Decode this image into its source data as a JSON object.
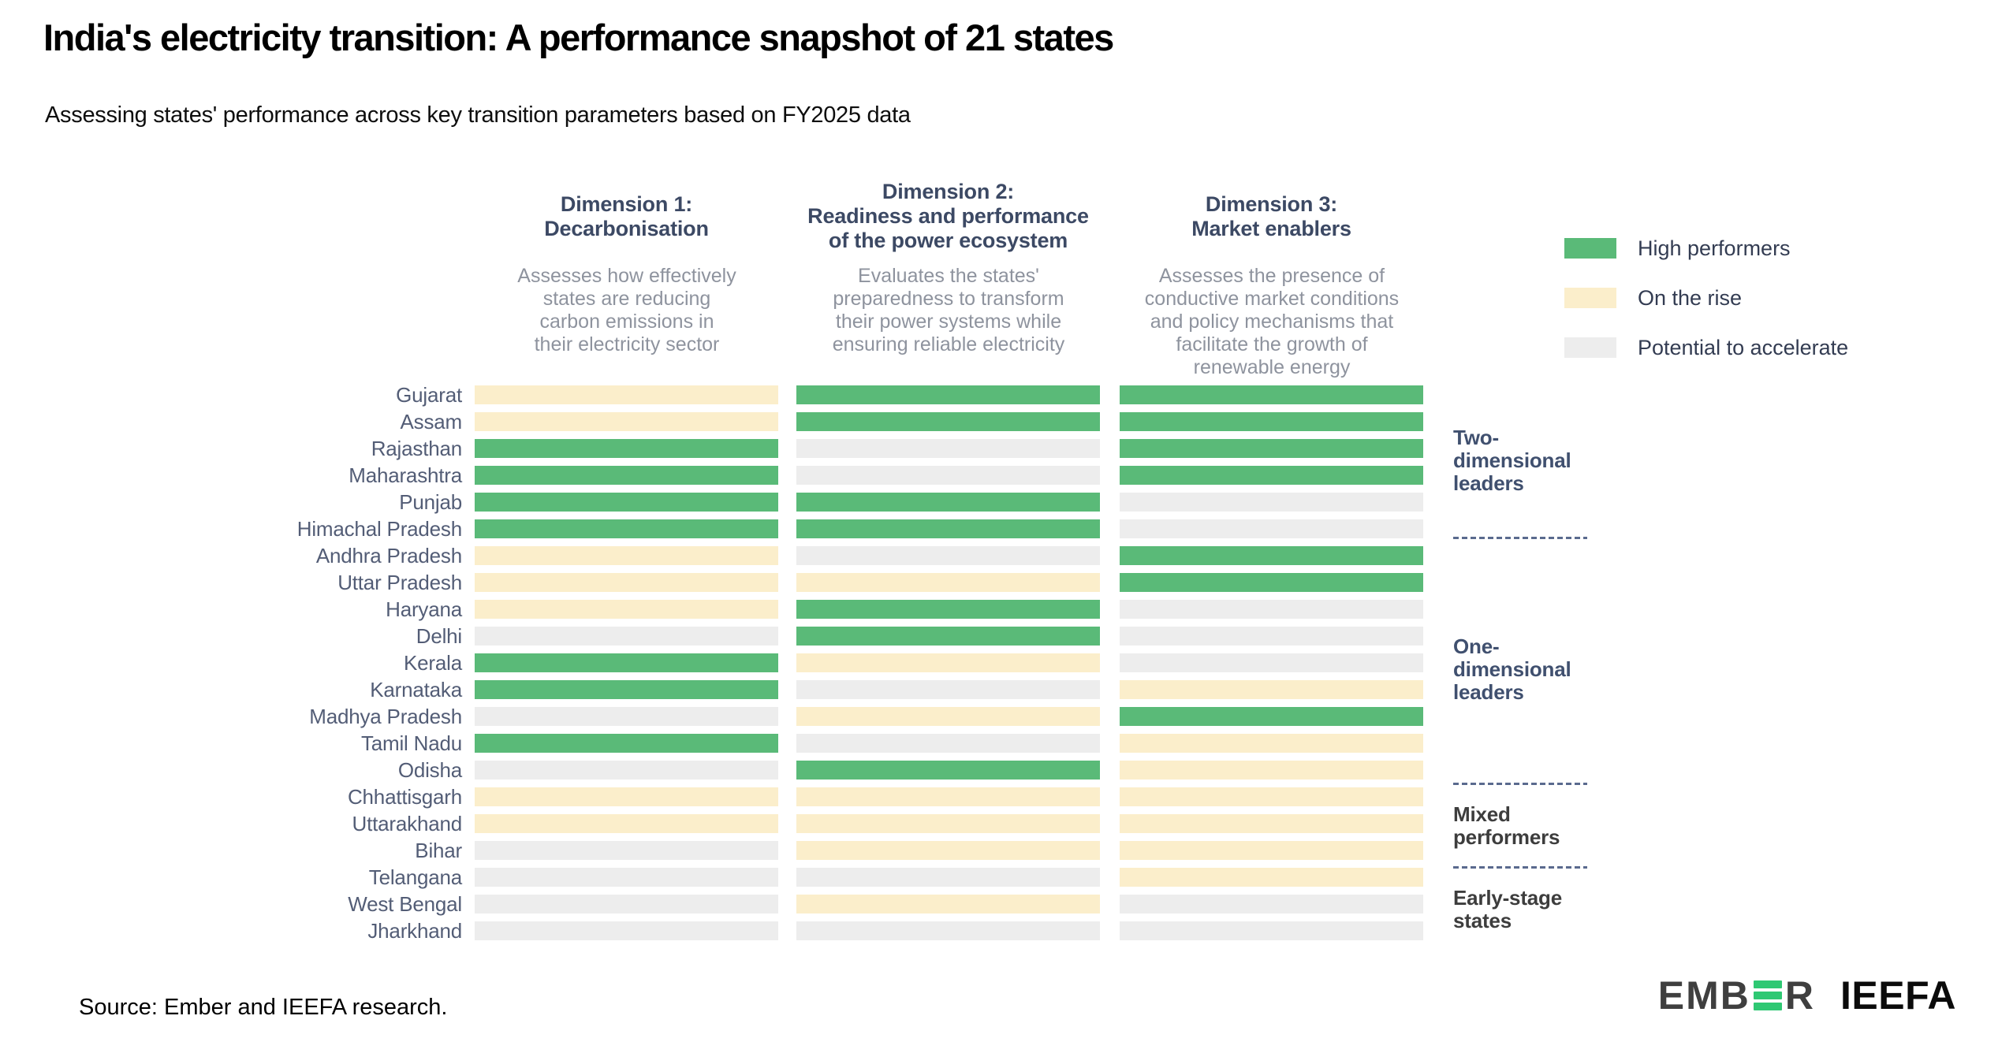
{
  "title": "India's electricity transition: A performance snapshot of 21 states",
  "subtitle": "Assessing states' performance across key transition parameters based on FY2025 data",
  "columns": [
    {
      "title": "Dimension 1:\nDecarbonisation",
      "description": "Assesses how effectively\nstates are reducing\ncarbon emissions in\ntheir electricity sector"
    },
    {
      "title": "Dimension 2:\nReadiness and performance\nof the power ecosystem",
      "description": "Evaluates the states'\npreparedness to transform\ntheir power systems while\nensuring reliable electricity"
    },
    {
      "title": "Dimension 3:\nMarket enablers",
      "description": "Assesses the presence of\nconductive market conditions\nand policy mechanisms that\nfacilitate the growth of\nrenewable energy"
    }
  ],
  "legend": {
    "items": [
      {
        "key": "green",
        "label": "High performers",
        "color": "#5aba78"
      },
      {
        "key": "yellow",
        "label": "On the rise",
        "color": "#fbeecb"
      },
      {
        "key": "grey",
        "label": "Potential to accelerate",
        "color": "#ededed"
      }
    ]
  },
  "chart_data": {
    "type": "heatmap",
    "columns": [
      "Dimension 1: Decarbonisation",
      "Dimension 2: Readiness and performance of the power ecosystem",
      "Dimension 3: Market enablers"
    ],
    "value_labels": {
      "green": "High performers",
      "yellow": "On the rise",
      "grey": "Potential to accelerate"
    },
    "rows": [
      {
        "state": "Gujarat",
        "values": [
          "yellow",
          "green",
          "green"
        ]
      },
      {
        "state": "Assam",
        "values": [
          "yellow",
          "green",
          "green"
        ]
      },
      {
        "state": "Rajasthan",
        "values": [
          "green",
          "grey",
          "green"
        ]
      },
      {
        "state": "Maharashtra",
        "values": [
          "green",
          "grey",
          "green"
        ]
      },
      {
        "state": "Punjab",
        "values": [
          "green",
          "green",
          "grey"
        ]
      },
      {
        "state": "Himachal Pradesh",
        "values": [
          "green",
          "green",
          "grey"
        ]
      },
      {
        "state": "Andhra Pradesh",
        "values": [
          "yellow",
          "grey",
          "green"
        ]
      },
      {
        "state": "Uttar Pradesh",
        "values": [
          "yellow",
          "yellow",
          "green"
        ]
      },
      {
        "state": "Haryana",
        "values": [
          "yellow",
          "green",
          "grey"
        ]
      },
      {
        "state": "Delhi",
        "values": [
          "grey",
          "green",
          "grey"
        ]
      },
      {
        "state": "Kerala",
        "values": [
          "green",
          "yellow",
          "grey"
        ]
      },
      {
        "state": "Karnataka",
        "values": [
          "green",
          "grey",
          "yellow"
        ]
      },
      {
        "state": "Madhya Pradesh",
        "values": [
          "grey",
          "yellow",
          "green"
        ]
      },
      {
        "state": "Tamil Nadu",
        "values": [
          "green",
          "grey",
          "yellow"
        ]
      },
      {
        "state": "Odisha",
        "values": [
          "grey",
          "green",
          "yellow"
        ]
      },
      {
        "state": "Chhattisgarh",
        "values": [
          "yellow",
          "yellow",
          "yellow"
        ]
      },
      {
        "state": "Uttarakhand",
        "values": [
          "yellow",
          "yellow",
          "yellow"
        ]
      },
      {
        "state": "Bihar",
        "values": [
          "grey",
          "yellow",
          "yellow"
        ]
      },
      {
        "state": "Telangana",
        "values": [
          "grey",
          "grey",
          "yellow"
        ]
      },
      {
        "state": "West Bengal",
        "values": [
          "grey",
          "yellow",
          "grey"
        ]
      },
      {
        "state": "Jharkhand",
        "values": [
          "grey",
          "grey",
          "grey"
        ]
      }
    ]
  },
  "groups": [
    {
      "label": "Two-dimensional leaders"
    },
    {
      "label": "One-dimensional leaders"
    },
    {
      "label": "Mixed performers"
    },
    {
      "label": "Early-stage states"
    }
  ],
  "source": "Source: Ember and IEEFA research.",
  "footer_logos": {
    "ember_prefix": "EMB",
    "ember_suffix": "R",
    "ieefa": "IEEFA"
  }
}
